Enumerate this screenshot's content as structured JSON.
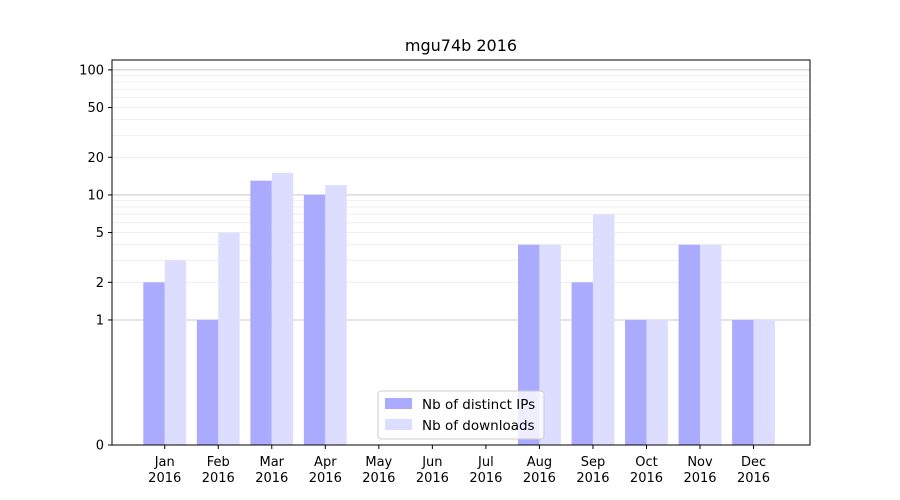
{
  "chart_data": {
    "type": "bar",
    "title": "mgu74b 2016",
    "xlabel": "",
    "ylabel": "",
    "y_scale": "symlog",
    "ylim": [
      0,
      120
    ],
    "y_ticks": [
      0,
      1,
      2,
      5,
      10,
      20,
      50,
      100
    ],
    "y_tick_labels": [
      "0",
      "1",
      "2",
      "5",
      "10",
      "20",
      "50",
      "100"
    ],
    "grid": "horizontal",
    "legend_position": "bottom-center",
    "categories": [
      {
        "month": "Jan",
        "year": "2016"
      },
      {
        "month": "Feb",
        "year": "2016"
      },
      {
        "month": "Mar",
        "year": "2016"
      },
      {
        "month": "Apr",
        "year": "2016"
      },
      {
        "month": "May",
        "year": "2016"
      },
      {
        "month": "Jun",
        "year": "2016"
      },
      {
        "month": "Jul",
        "year": "2016"
      },
      {
        "month": "Aug",
        "year": "2016"
      },
      {
        "month": "Sep",
        "year": "2016"
      },
      {
        "month": "Oct",
        "year": "2016"
      },
      {
        "month": "Nov",
        "year": "2016"
      },
      {
        "month": "Dec",
        "year": "2016"
      }
    ],
    "series": [
      {
        "name": "Nb of distinct IPs",
        "color": "#aaaaff",
        "values": [
          2,
          1,
          13,
          10,
          0,
          0,
          0,
          4,
          2,
          1,
          4,
          1
        ]
      },
      {
        "name": "Nb of downloads",
        "color": "#ddddff",
        "values": [
          3,
          5,
          15,
          12,
          0,
          0,
          0,
          4,
          7,
          1,
          4,
          1
        ]
      }
    ]
  }
}
